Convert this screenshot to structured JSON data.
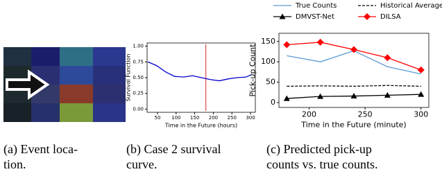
{
  "chart_data": [
    {
      "type": "line",
      "xlabel": "Time in the Future (hours)",
      "ylabel": "Survival Function",
      "x": [
        24,
        48,
        72,
        96,
        120,
        144,
        168,
        192,
        216,
        240,
        264,
        288,
        304
      ],
      "values": [
        0.75,
        0.69,
        0.59,
        0.52,
        0.51,
        0.53,
        0.5,
        0.47,
        0.45,
        0.48,
        0.5,
        0.51,
        0.55
      ],
      "color": "#0000cc",
      "vline": 180,
      "vline_color": "#d62728",
      "xlim": [
        22,
        313
      ],
      "ylim": [
        -0.05,
        1.05
      ],
      "xticks": [
        50,
        100,
        150,
        200,
        250,
        300
      ],
      "yticks": [
        {
          "value": 0,
          "label": "0.00"
        },
        {
          "value": 0.25,
          "label": "0.25"
        },
        {
          "value": 0.5,
          "label": "0.50"
        },
        {
          "value": 0.75,
          "label": "0.75"
        },
        {
          "value": 1,
          "label": "1.00"
        }
      ]
    },
    {
      "type": "line",
      "xlabel": "Time in the Future (minute)",
      "ylabel": "Pick-up Count",
      "x": [
        180,
        210,
        240,
        270,
        300
      ],
      "series": [
        {
          "name": "True Counts",
          "color": "#5b9bd5",
          "values": [
            115,
            100,
            127,
            88,
            70
          ]
        },
        {
          "name": "Historical Average",
          "color": "#000000",
          "dash": true,
          "values": [
            40,
            41,
            40,
            42,
            40
          ]
        },
        {
          "name": "DMVST-Net",
          "color": "#000000",
          "marker": "triangle",
          "values": [
            10,
            15,
            16,
            18,
            20
          ]
        },
        {
          "name": "DILSA",
          "color": "#ff0000",
          "marker": "diamond",
          "values": [
            142,
            148,
            130,
            110,
            80
          ]
        }
      ],
      "legend": "top",
      "xlim": [
        173,
        307
      ],
      "ylim": [
        -12,
        170
      ],
      "xticks": [
        200,
        250,
        300
      ],
      "yticks": [
        0,
        50,
        100,
        150
      ]
    }
  ],
  "captions": [
    [
      "(a) Event loca-",
      "tion."
    ],
    [
      "(b) Case 2 survival",
      "curve."
    ],
    [
      "(c) Predicted pick-up",
      "counts vs. true counts."
    ]
  ]
}
